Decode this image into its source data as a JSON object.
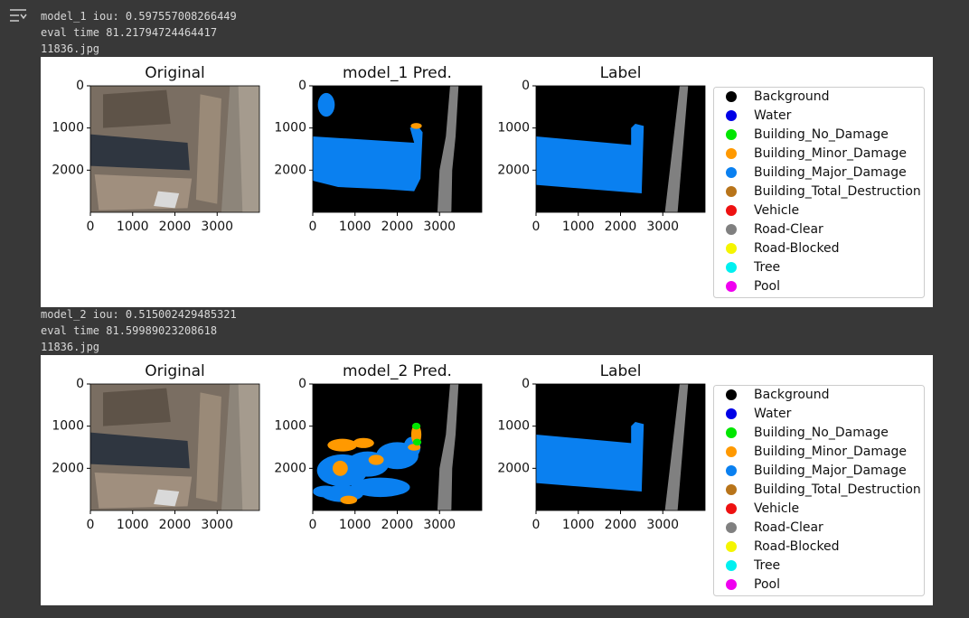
{
  "outputs": [
    {
      "log": [
        "model_1 iou: 0.597557008266449",
        "eval time 81.21794724464417",
        "11836.jpg"
      ],
      "panels": [
        {
          "title": "Original"
        },
        {
          "title": "model_1 Pred."
        },
        {
          "title": "Label"
        }
      ]
    },
    {
      "log": [
        "model_2 iou: 0.515002429485321",
        "eval time 81.59989023208618",
        "11836.jpg"
      ],
      "panels": [
        {
          "title": "Original"
        },
        {
          "title": "model_2 Pred."
        },
        {
          "title": "Label"
        }
      ]
    }
  ],
  "axes": {
    "xlim": [
      0,
      4000
    ],
    "ylim": [
      3000,
      0
    ],
    "xticks": [
      0,
      1000,
      2000,
      3000
    ],
    "yticks": [
      0,
      1000,
      2000
    ]
  },
  "legend": [
    {
      "name": "Background",
      "color": "#000000"
    },
    {
      "name": "Water",
      "color": "#0000e6"
    },
    {
      "name": "Building_No_Damage",
      "color": "#00e600"
    },
    {
      "name": "Building_Minor_Damage",
      "color": "#ff9900"
    },
    {
      "name": "Building_Major_Damage",
      "color": "#0a80f0"
    },
    {
      "name": "Building_Total_Destruction",
      "color": "#b8741a"
    },
    {
      "name": "Vehicle",
      "color": "#ee1111"
    },
    {
      "name": "Road-Clear",
      "color": "#808080"
    },
    {
      "name": "Road-Blocked",
      "color": "#f5f500"
    },
    {
      "name": "Tree",
      "color": "#00f0f0"
    },
    {
      "name": "Pool",
      "color": "#f000f0"
    }
  ]
}
